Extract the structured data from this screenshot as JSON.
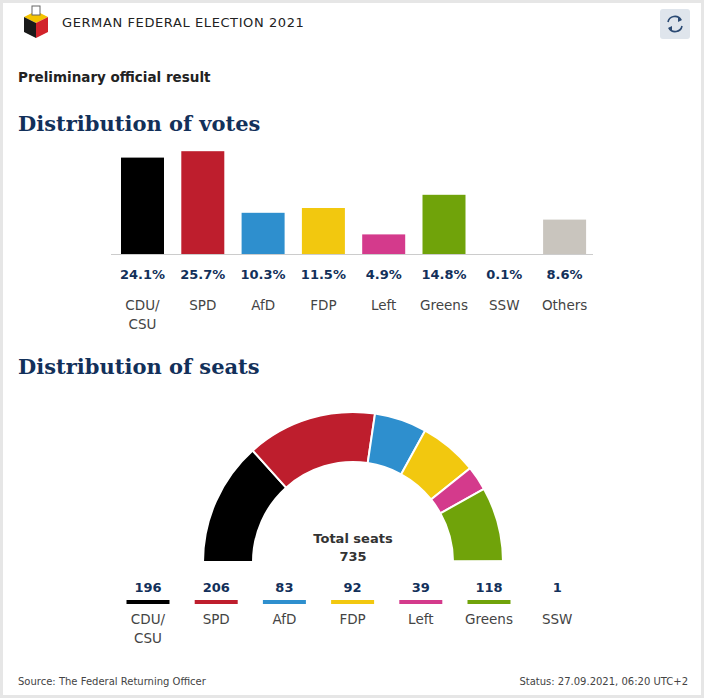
{
  "header": {
    "title": "GERMAN FEDERAL ELECTION 2021",
    "subtitle": "Preliminary official result"
  },
  "chart_data": [
    {
      "type": "bar",
      "title": "Distribution of votes",
      "categories": [
        "CDU/CSU",
        "SPD",
        "AfD",
        "FDP",
        "Left",
        "Greens",
        "SSW",
        "Others"
      ],
      "values": [
        24.1,
        25.7,
        10.3,
        11.5,
        4.9,
        14.8,
        0.1,
        8.6
      ],
      "value_labels": [
        "24.1%",
        "25.7%",
        "10.3%",
        "11.5%",
        "4.9%",
        "14.8%",
        "0.1%",
        "8.6%"
      ],
      "colors": [
        "#000000",
        "#be1e2d",
        "#2e8fce",
        "#f2c80f",
        "#d43a8c",
        "#70a30a",
        "#ffffff",
        "#c9c5be"
      ],
      "ylim": [
        0,
        26
      ],
      "data_labels": true,
      "tick_labels": "x",
      "grid": false
    },
    {
      "type": "semicircle",
      "title": "Distribution of seats",
      "categories": [
        "CDU/CSU",
        "SPD",
        "AfD",
        "FDP",
        "Left",
        "Greens",
        "SSW"
      ],
      "values": [
        196,
        206,
        83,
        92,
        39,
        118,
        1
      ],
      "colors": [
        "#000000",
        "#be1e2d",
        "#2e8fce",
        "#f2c80f",
        "#d43a8c",
        "#70a30a",
        "#ffffff"
      ],
      "total_label": "Total seats",
      "total": 735,
      "data_labels": true
    }
  ],
  "footer": {
    "source": "Source: The Federal Returning Officer",
    "status": "Status: 27.09.2021, 06:20 UTC+2"
  }
}
